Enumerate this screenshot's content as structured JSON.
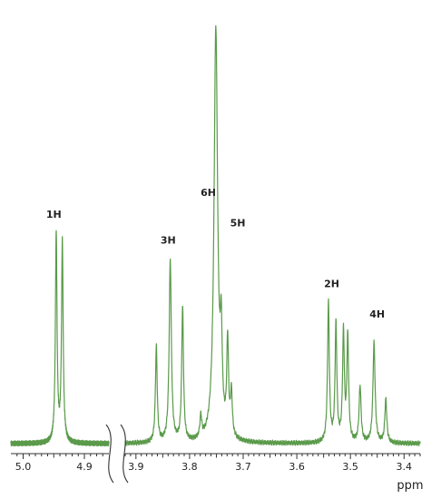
{
  "chart_data": {
    "type": "line",
    "title": "",
    "xlabel": "ppm",
    "ylabel": "",
    "x_direction": "descending",
    "axis_break": {
      "between": [
        3.92,
        4.86
      ]
    },
    "segments": [
      {
        "name": "left",
        "xlim": [
          5.02,
          4.86
        ],
        "ticks": [
          {
            "value": 5.0,
            "label": "5.0"
          },
          {
            "value": 4.9,
            "label": "4.9"
          }
        ]
      },
      {
        "name": "right",
        "xlim": [
          3.92,
          3.37
        ],
        "ticks": [
          {
            "value": 3.9,
            "label": "3.9"
          },
          {
            "value": 3.8,
            "label": "3.8"
          },
          {
            "value": 3.7,
            "label": "3.7"
          },
          {
            "value": 3.6,
            "label": "3.6"
          },
          {
            "value": 3.5,
            "label": "3.5"
          },
          {
            "value": 3.4,
            "label": "3.4"
          }
        ]
      }
    ],
    "ylim": [
      0,
      100
    ],
    "series_color": "#5a9a4a",
    "peaks": [
      {
        "x": 4.946,
        "height": 48,
        "width": 0.0016
      },
      {
        "x": 4.936,
        "height": 46,
        "width": 0.0016
      },
      {
        "x": 3.862,
        "height": 22,
        "width": 0.002
      },
      {
        "x": 3.836,
        "height": 42,
        "width": 0.0024
      },
      {
        "x": 3.813,
        "height": 31,
        "width": 0.002
      },
      {
        "x": 3.779,
        "height": 5,
        "width": 0.002
      },
      {
        "x": 3.751,
        "height": 95,
        "width": 0.004
      },
      {
        "x": 3.741,
        "height": 20,
        "width": 0.0022
      },
      {
        "x": 3.729,
        "height": 22,
        "width": 0.002
      },
      {
        "x": 3.722,
        "height": 10,
        "width": 0.002
      },
      {
        "x": 3.541,
        "height": 32,
        "width": 0.002
      },
      {
        "x": 3.527,
        "height": 27,
        "width": 0.002
      },
      {
        "x": 3.513,
        "height": 25,
        "width": 0.002
      },
      {
        "x": 3.505,
        "height": 24,
        "width": 0.002
      },
      {
        "x": 3.482,
        "height": 13,
        "width": 0.0022
      },
      {
        "x": 3.456,
        "height": 23,
        "width": 0.0024
      },
      {
        "x": 3.434,
        "height": 10,
        "width": 0.0022
      }
    ],
    "annotations": [
      {
        "text": "1H",
        "x": 4.95,
        "y": 52
      },
      {
        "text": "3H",
        "x": 3.84,
        "y": 46
      },
      {
        "text": "6H",
        "x": 3.765,
        "y": 57
      },
      {
        "text": "5H",
        "x": 3.71,
        "y": 50
      },
      {
        "text": "2H",
        "x": 3.535,
        "y": 36
      },
      {
        "text": "4H",
        "x": 3.45,
        "y": 29
      }
    ]
  }
}
